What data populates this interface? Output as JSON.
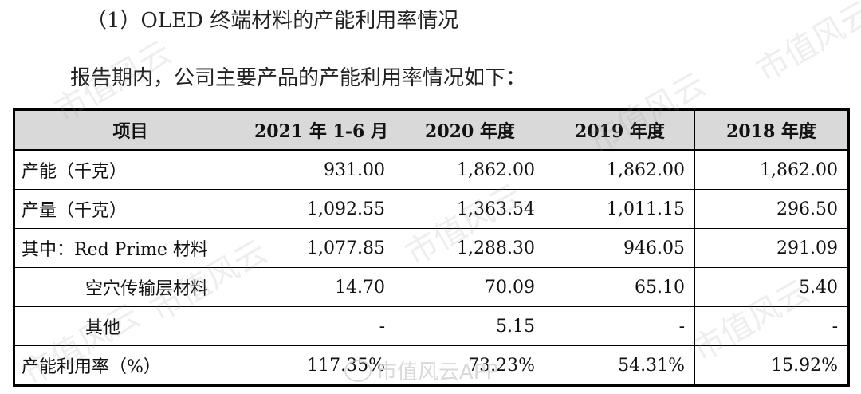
{
  "heading": "（1）OLED 终端材料的产能利用率情况",
  "intro": "报告期内，公司主要产品的产能利用率情况如下：",
  "table": {
    "headers": [
      "项目",
      "2021 年 1-6 月",
      "2020 年度",
      "2019 年度",
      "2018 年度"
    ],
    "rows": [
      {
        "label": "产能（千克）",
        "values": [
          "931.00",
          "1,862.00",
          "1,862.00",
          "1,862.00"
        ]
      },
      {
        "label": "产量（千克）",
        "values": [
          "1,092.55",
          "1,363.54",
          "1,011.15",
          "296.50"
        ]
      },
      {
        "label": "其中：Red Prime 材料",
        "values": [
          "1,077.85",
          "1,288.30",
          "946.05",
          "291.09"
        ]
      },
      {
        "label": "空穴传输层材料",
        "values": [
          "14.70",
          "70.09",
          "65.10",
          "5.40"
        ]
      },
      {
        "label": "其他",
        "values": [
          "-",
          "5.15",
          "-",
          "-"
        ]
      },
      {
        "label": "产能利用率（%）",
        "values": [
          "117.35%",
          "73.23%",
          "54.31%",
          "15.92%"
        ]
      }
    ]
  },
  "watermark": {
    "text": "市值风云",
    "footer": "市值风云APP"
  }
}
